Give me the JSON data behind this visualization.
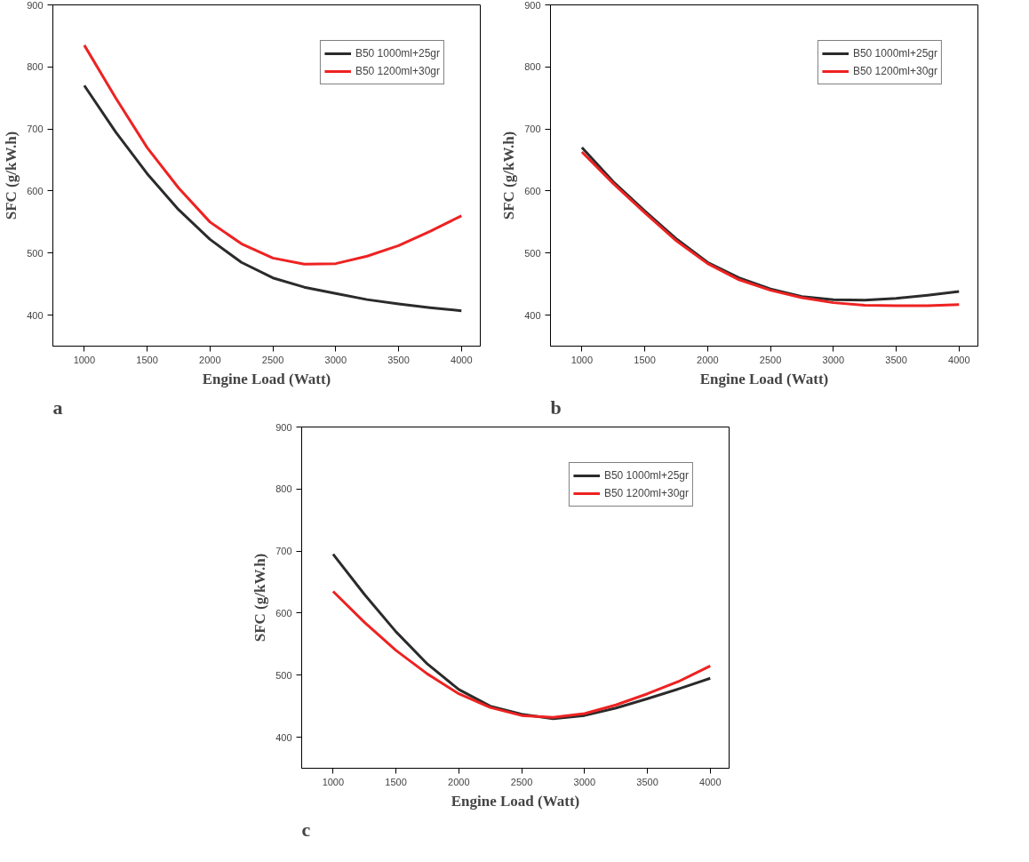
{
  "chart_data": [
    {
      "type": "line",
      "xlabel": "Engine Load (Watt)",
      "ylabel": "SFC (g/kW.h)",
      "annotations": [
        "a"
      ],
      "x": [
        1000,
        1250,
        1500,
        1750,
        2000,
        2250,
        2500,
        2750,
        3000,
        3250,
        3500,
        3750,
        4000
      ],
      "xlim": [
        750,
        4150
      ],
      "ylim": [
        350,
        900
      ],
      "xticks": [
        1000,
        1500,
        2000,
        2500,
        3000,
        3500,
        4000
      ],
      "yticks": [
        400,
        500,
        600,
        700,
        800,
        900
      ],
      "grid": false,
      "legend": "top right",
      "marker": "none",
      "line_style": "solid",
      "series": [
        {
          "name": "B50 1000ml+25gr",
          "color": "#2b2b2b",
          "values": [
            770,
            695,
            628,
            570,
            522,
            485,
            460,
            445,
            435,
            425,
            418,
            412,
            407
          ]
        },
        {
          "name": "B50 1200ml+30gr",
          "color": "#ee2222",
          "values": [
            835,
            750,
            670,
            605,
            550,
            515,
            492,
            482,
            483,
            495,
            512,
            535,
            560
          ]
        }
      ]
    },
    {
      "type": "line",
      "xlabel": "Engine Load (Watt)",
      "ylabel": "SFC (g/kW.h)",
      "annotations": [
        "b"
      ],
      "x": [
        1000,
        1250,
        1500,
        1750,
        2000,
        2250,
        2500,
        2750,
        3000,
        3250,
        3500,
        3750,
        4000
      ],
      "xlim": [
        750,
        4150
      ],
      "ylim": [
        350,
        900
      ],
      "xticks": [
        1000,
        1500,
        2000,
        2500,
        3000,
        3500,
        4000
      ],
      "yticks": [
        400,
        500,
        600,
        700,
        800,
        900
      ],
      "grid": false,
      "legend": "top right",
      "marker": "none",
      "line_style": "solid",
      "series": [
        {
          "name": "B50 1000ml+25gr",
          "color": "#2b2b2b",
          "values": [
            670,
            615,
            568,
            523,
            485,
            460,
            442,
            430,
            425,
            424,
            427,
            432,
            438
          ]
        },
        {
          "name": "B50 1200ml+30gr",
          "color": "#ee2222",
          "values": [
            663,
            612,
            565,
            520,
            483,
            457,
            440,
            428,
            420,
            416,
            415,
            415,
            417
          ]
        }
      ]
    },
    {
      "type": "line",
      "xlabel": "Engine Load (Watt)",
      "ylabel": "SFC (g/kW.h)",
      "annotations": [
        "c"
      ],
      "x": [
        1000,
        1250,
        1500,
        1750,
        2000,
        2250,
        2500,
        2750,
        3000,
        3250,
        3500,
        3750,
        4000
      ],
      "xlim": [
        750,
        4150
      ],
      "ylim": [
        350,
        900
      ],
      "xticks": [
        1000,
        1500,
        2000,
        2500,
        3000,
        3500,
        4000
      ],
      "yticks": [
        400,
        500,
        600,
        700,
        800,
        900
      ],
      "grid": false,
      "legend": "top right",
      "marker": "none",
      "line_style": "solid",
      "series": [
        {
          "name": "B50 1000ml+25gr",
          "color": "#2b2b2b",
          "values": [
            695,
            630,
            570,
            518,
            477,
            450,
            437,
            430,
            435,
            447,
            462,
            478,
            495
          ]
        },
        {
          "name": "B50 1200ml+30gr",
          "color": "#ee2222",
          "values": [
            635,
            585,
            540,
            502,
            470,
            448,
            435,
            432,
            438,
            452,
            470,
            490,
            515
          ]
        }
      ]
    }
  ]
}
